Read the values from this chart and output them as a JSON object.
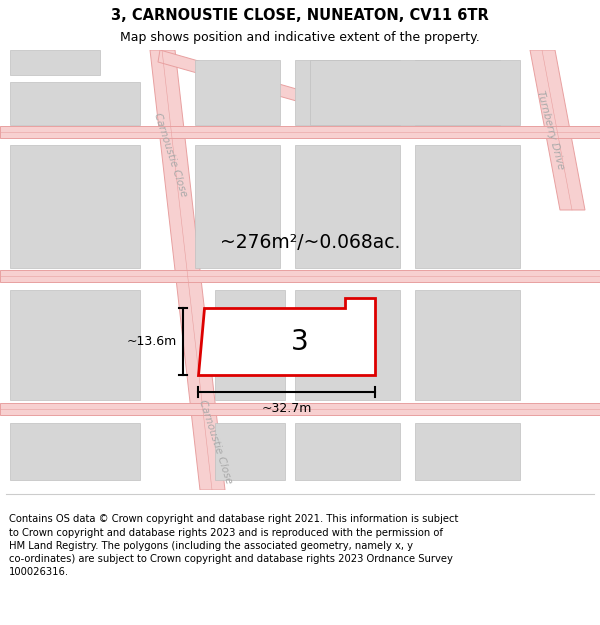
{
  "title": "3, CARNOUSTIE CLOSE, NUNEATON, CV11 6TR",
  "subtitle": "Map shows position and indicative extent of the property.",
  "footer": "Contains OS data © Crown copyright and database right 2021. This information is subject\nto Crown copyright and database rights 2023 and is reproduced with the permission of\nHM Land Registry. The polygons (including the associated geometry, namely x, y\nco-ordinates) are subject to Crown copyright and database rights 2023 Ordnance Survey\n100026316.",
  "area_label": "~276m²/~0.068ac.",
  "width_label": "~32.7m",
  "height_label": "~13.6m",
  "number_label": "3",
  "map_bg": "#eeecec",
  "road_fill": "#f7d0d0",
  "road_edge": "#e8a0a0",
  "road_center_line": "#e8a0a0",
  "building_fill": "#d6d6d6",
  "building_edge": "#c0c0c0",
  "plot_fill": "#ffffff",
  "plot_edge": "#dd0000",
  "title_fontsize": 10.5,
  "subtitle_fontsize": 9,
  "label_fontsize": 14,
  "footer_fontsize": 7.2,
  "plot_lw": 2.0,
  "road_lw": 0.7,
  "building_lw": 0.5
}
